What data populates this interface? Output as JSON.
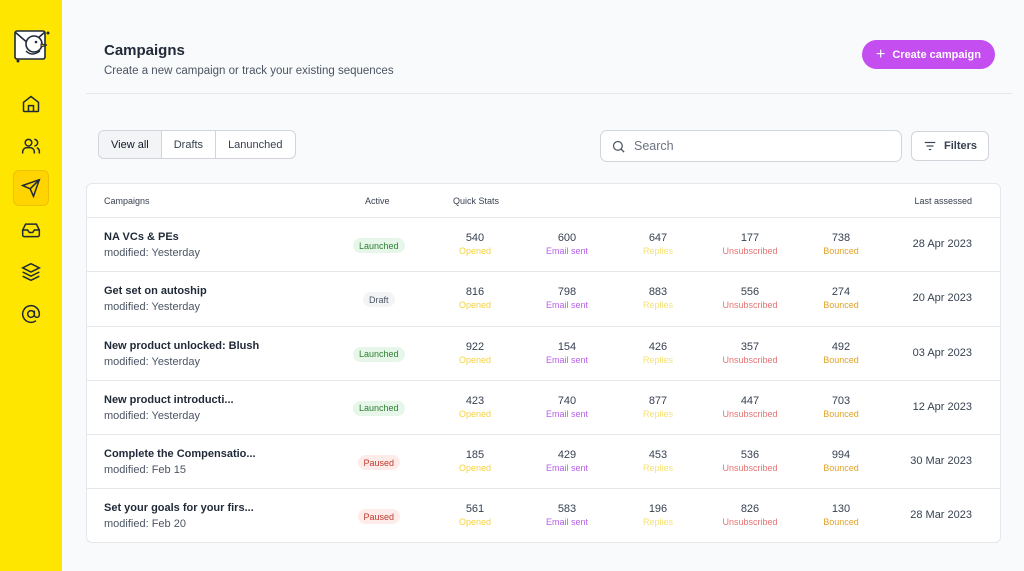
{
  "header": {
    "title": "Campaigns",
    "subtitle": "Create a new campaign or track your existing sequences",
    "create_label": "Create campaign"
  },
  "tabs": [
    "View all",
    "Drafts",
    "Lanunched"
  ],
  "search": {
    "placeholder": "Search"
  },
  "filters_label": "Filters",
  "table": {
    "headers": {
      "campaigns": "Campaigns",
      "active": "Active",
      "quick_stats": "Quick Stats",
      "last_assessed": "Last assessed"
    },
    "rows": [
      {
        "name": "NA VCs & PEs",
        "modified": "modified: Yesterday",
        "status": "Launched",
        "opened": "540",
        "sent": "600",
        "replies": "647",
        "unsub": "177",
        "bounced": "738",
        "date": "28 Apr 2023"
      },
      {
        "name": "Get set on autoship",
        "modified": "modified: Yesterday",
        "status": "Draft",
        "opened": "816",
        "sent": "798",
        "replies": "883",
        "unsub": "556",
        "bounced": "274",
        "date": "20 Apr 2023"
      },
      {
        "name": "New product unlocked: Blush",
        "modified": "modified: Yesterday",
        "status": "Launched",
        "opened": "922",
        "sent": "154",
        "replies": "426",
        "unsub": "357",
        "bounced": "492",
        "date": "03  Apr 2023"
      },
      {
        "name": "New product introducti...",
        "modified": "modified: Yesterday",
        "status": "Launched",
        "opened": "423",
        "sent": "740",
        "replies": "877",
        "unsub": "447",
        "bounced": "703",
        "date": "12 Apr 2023"
      },
      {
        "name": "Complete the Compensatio...",
        "modified": "modified: Feb 15",
        "status": "Paused",
        "opened": "185",
        "sent": "429",
        "replies": "453",
        "unsub": "536",
        "bounced": "994",
        "date": "30 Mar 2023"
      },
      {
        "name": "Set your goals for your firs...",
        "modified": "modified: Feb 20",
        "status": "Paused",
        "opened": "561",
        "sent": "583",
        "replies": "196",
        "unsub": "826",
        "bounced": "130",
        "date": "28 Mar 2023"
      }
    ]
  },
  "stat_labels": {
    "opened": "Opened",
    "sent": "Email sent",
    "replies": "Replies",
    "unsub": "Unsubscribed",
    "bounced": "Bounced"
  },
  "colors": {
    "sidebar": "#ffe600",
    "accent": "#c44ef0"
  },
  "icons": [
    "logo-bird",
    "home-icon",
    "users-icon",
    "send-icon",
    "inbox-icon",
    "layers-icon",
    "at-icon"
  ]
}
